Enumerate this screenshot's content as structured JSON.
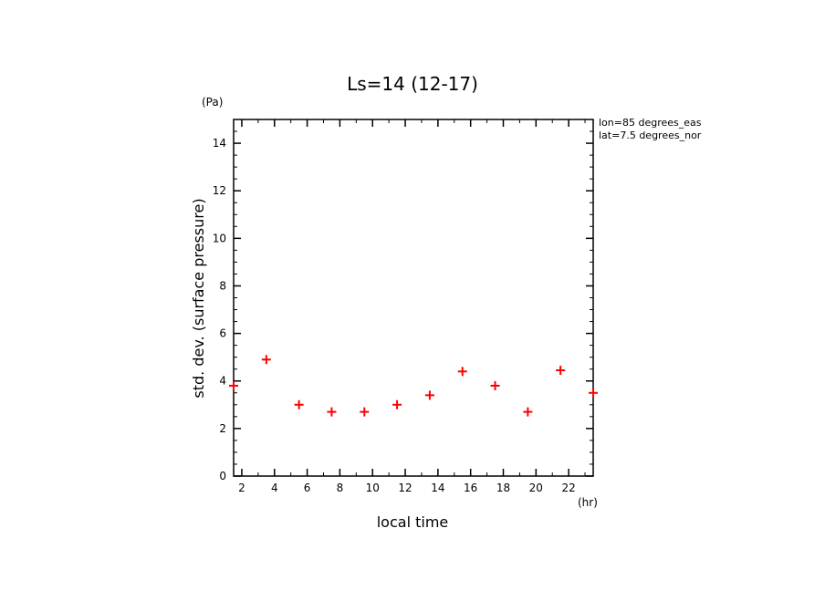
{
  "chart_data": {
    "type": "scatter",
    "title": "Ls=14 (12-17)",
    "xlabel": "local time",
    "ylabel": "std. dev. (surface pressure)",
    "x_unit": "(hr)",
    "y_unit": "(Pa)",
    "annotations": [
      "lon=85 degrees_eas",
      "lat=7.5 degrees_nor"
    ],
    "xlim": [
      1.5,
      23.5
    ],
    "ylim": [
      0,
      15
    ],
    "x_ticks": [
      2,
      4,
      6,
      8,
      10,
      12,
      14,
      16,
      18,
      20,
      22
    ],
    "y_ticks": [
      0,
      2,
      4,
      6,
      8,
      10,
      12,
      14
    ],
    "grid": false,
    "marker": "+",
    "marker_color": "#ff0000",
    "points": [
      {
        "x": 1.5,
        "y": 3.8
      },
      {
        "x": 3.5,
        "y": 4.9
      },
      {
        "x": 5.5,
        "y": 3.0
      },
      {
        "x": 7.5,
        "y": 2.7
      },
      {
        "x": 9.5,
        "y": 2.7
      },
      {
        "x": 11.5,
        "y": 3.0
      },
      {
        "x": 13.5,
        "y": 3.4
      },
      {
        "x": 15.5,
        "y": 4.4
      },
      {
        "x": 17.5,
        "y": 3.8
      },
      {
        "x": 19.5,
        "y": 2.7
      },
      {
        "x": 21.5,
        "y": 4.45
      },
      {
        "x": 23.5,
        "y": 3.5
      }
    ]
  }
}
